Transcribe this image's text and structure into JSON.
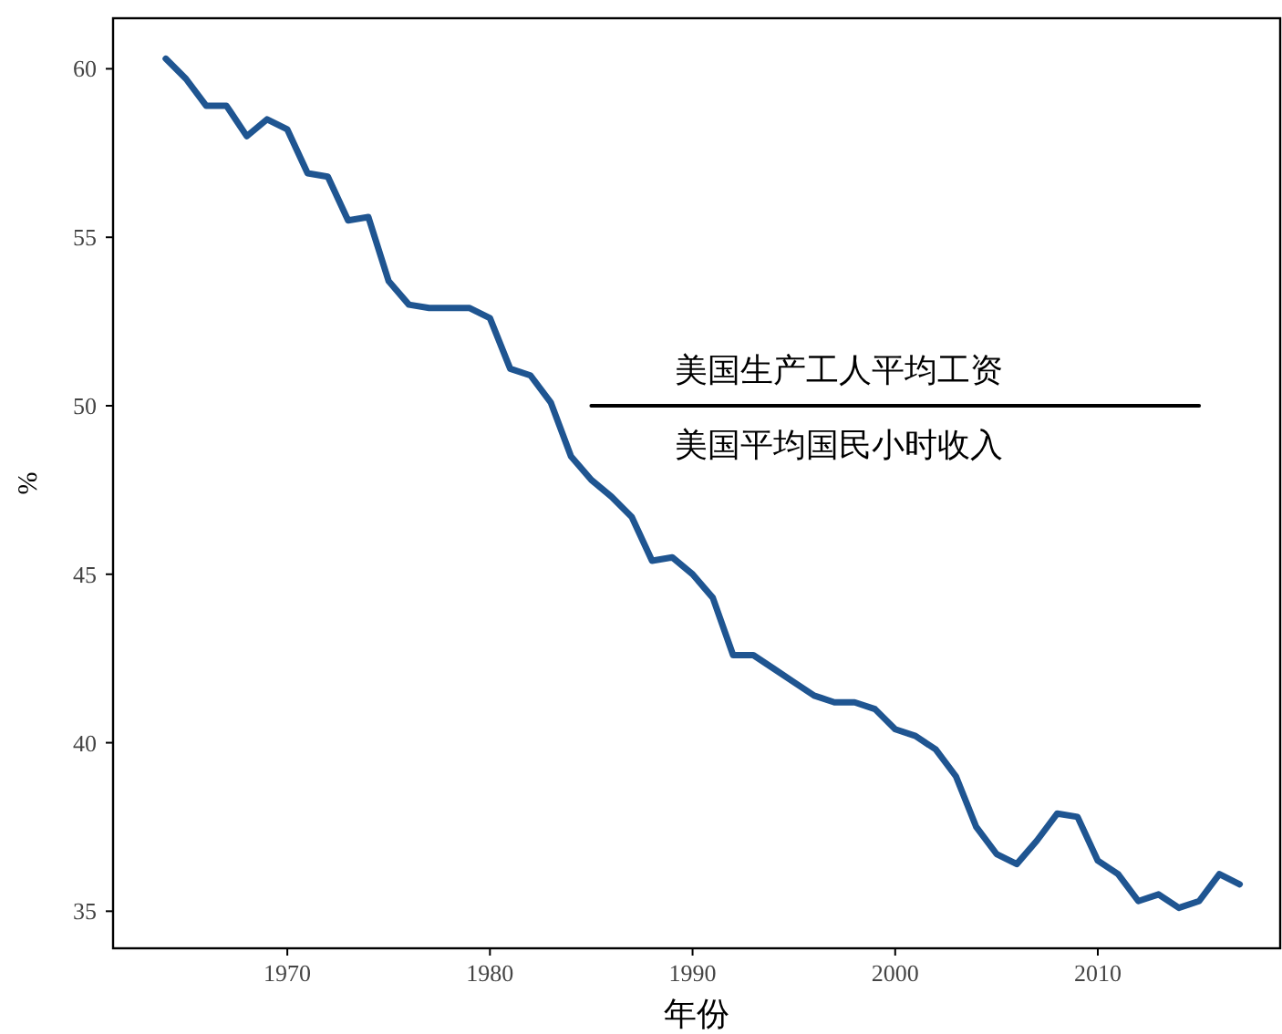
{
  "chart_data": {
    "type": "line",
    "xlabel": "年份",
    "ylabel": "%",
    "annotations": [
      "美国生产工人平均工资",
      "美国平均国民小时收入"
    ],
    "x": [
      1964,
      1965,
      1966,
      1967,
      1968,
      1969,
      1970,
      1971,
      1972,
      1973,
      1974,
      1975,
      1976,
      1977,
      1978,
      1979,
      1980,
      1981,
      1982,
      1983,
      1984,
      1985,
      1986,
      1987,
      1988,
      1989,
      1990,
      1991,
      1992,
      1993,
      1994,
      1995,
      1996,
      1997,
      1998,
      1999,
      2000,
      2001,
      2002,
      2003,
      2004,
      2005,
      2006,
      2007,
      2008,
      2009,
      2010,
      2011,
      2012,
      2013,
      2014,
      2015,
      2016,
      2017
    ],
    "series": [
      {
        "color": "#1f5591",
        "values": [
          60.3,
          59.7,
          58.9,
          58.9,
          58.0,
          58.5,
          58.2,
          56.9,
          56.8,
          55.5,
          55.6,
          53.7,
          53.0,
          52.9,
          52.9,
          52.9,
          52.6,
          51.1,
          50.9,
          50.1,
          48.5,
          47.8,
          47.3,
          46.7,
          45.4,
          45.5,
          45.0,
          44.3,
          42.6,
          42.6,
          42.2,
          41.8,
          41.4,
          41.2,
          41.2,
          41.0,
          40.4,
          40.2,
          39.8,
          39.0,
          37.5,
          36.7,
          36.4,
          37.1,
          37.9,
          37.8,
          36.5,
          36.1,
          35.3,
          35.5,
          35.1,
          35.3,
          36.1,
          35.8
        ]
      },
      {
        "color": "#000000",
        "x": [
          1985,
          2015
        ],
        "values": [
          50,
          50
        ]
      }
    ],
    "xlim": [
      1961.4,
      2019
    ],
    "ylim": [
      33.9,
      61.5
    ],
    "xticks": [
      1970,
      1980,
      1990,
      2000,
      2010
    ],
    "yticks": [
      35,
      40,
      45,
      50,
      55,
      60
    ],
    "grid": false,
    "marker": "none",
    "line_style": "solid"
  }
}
